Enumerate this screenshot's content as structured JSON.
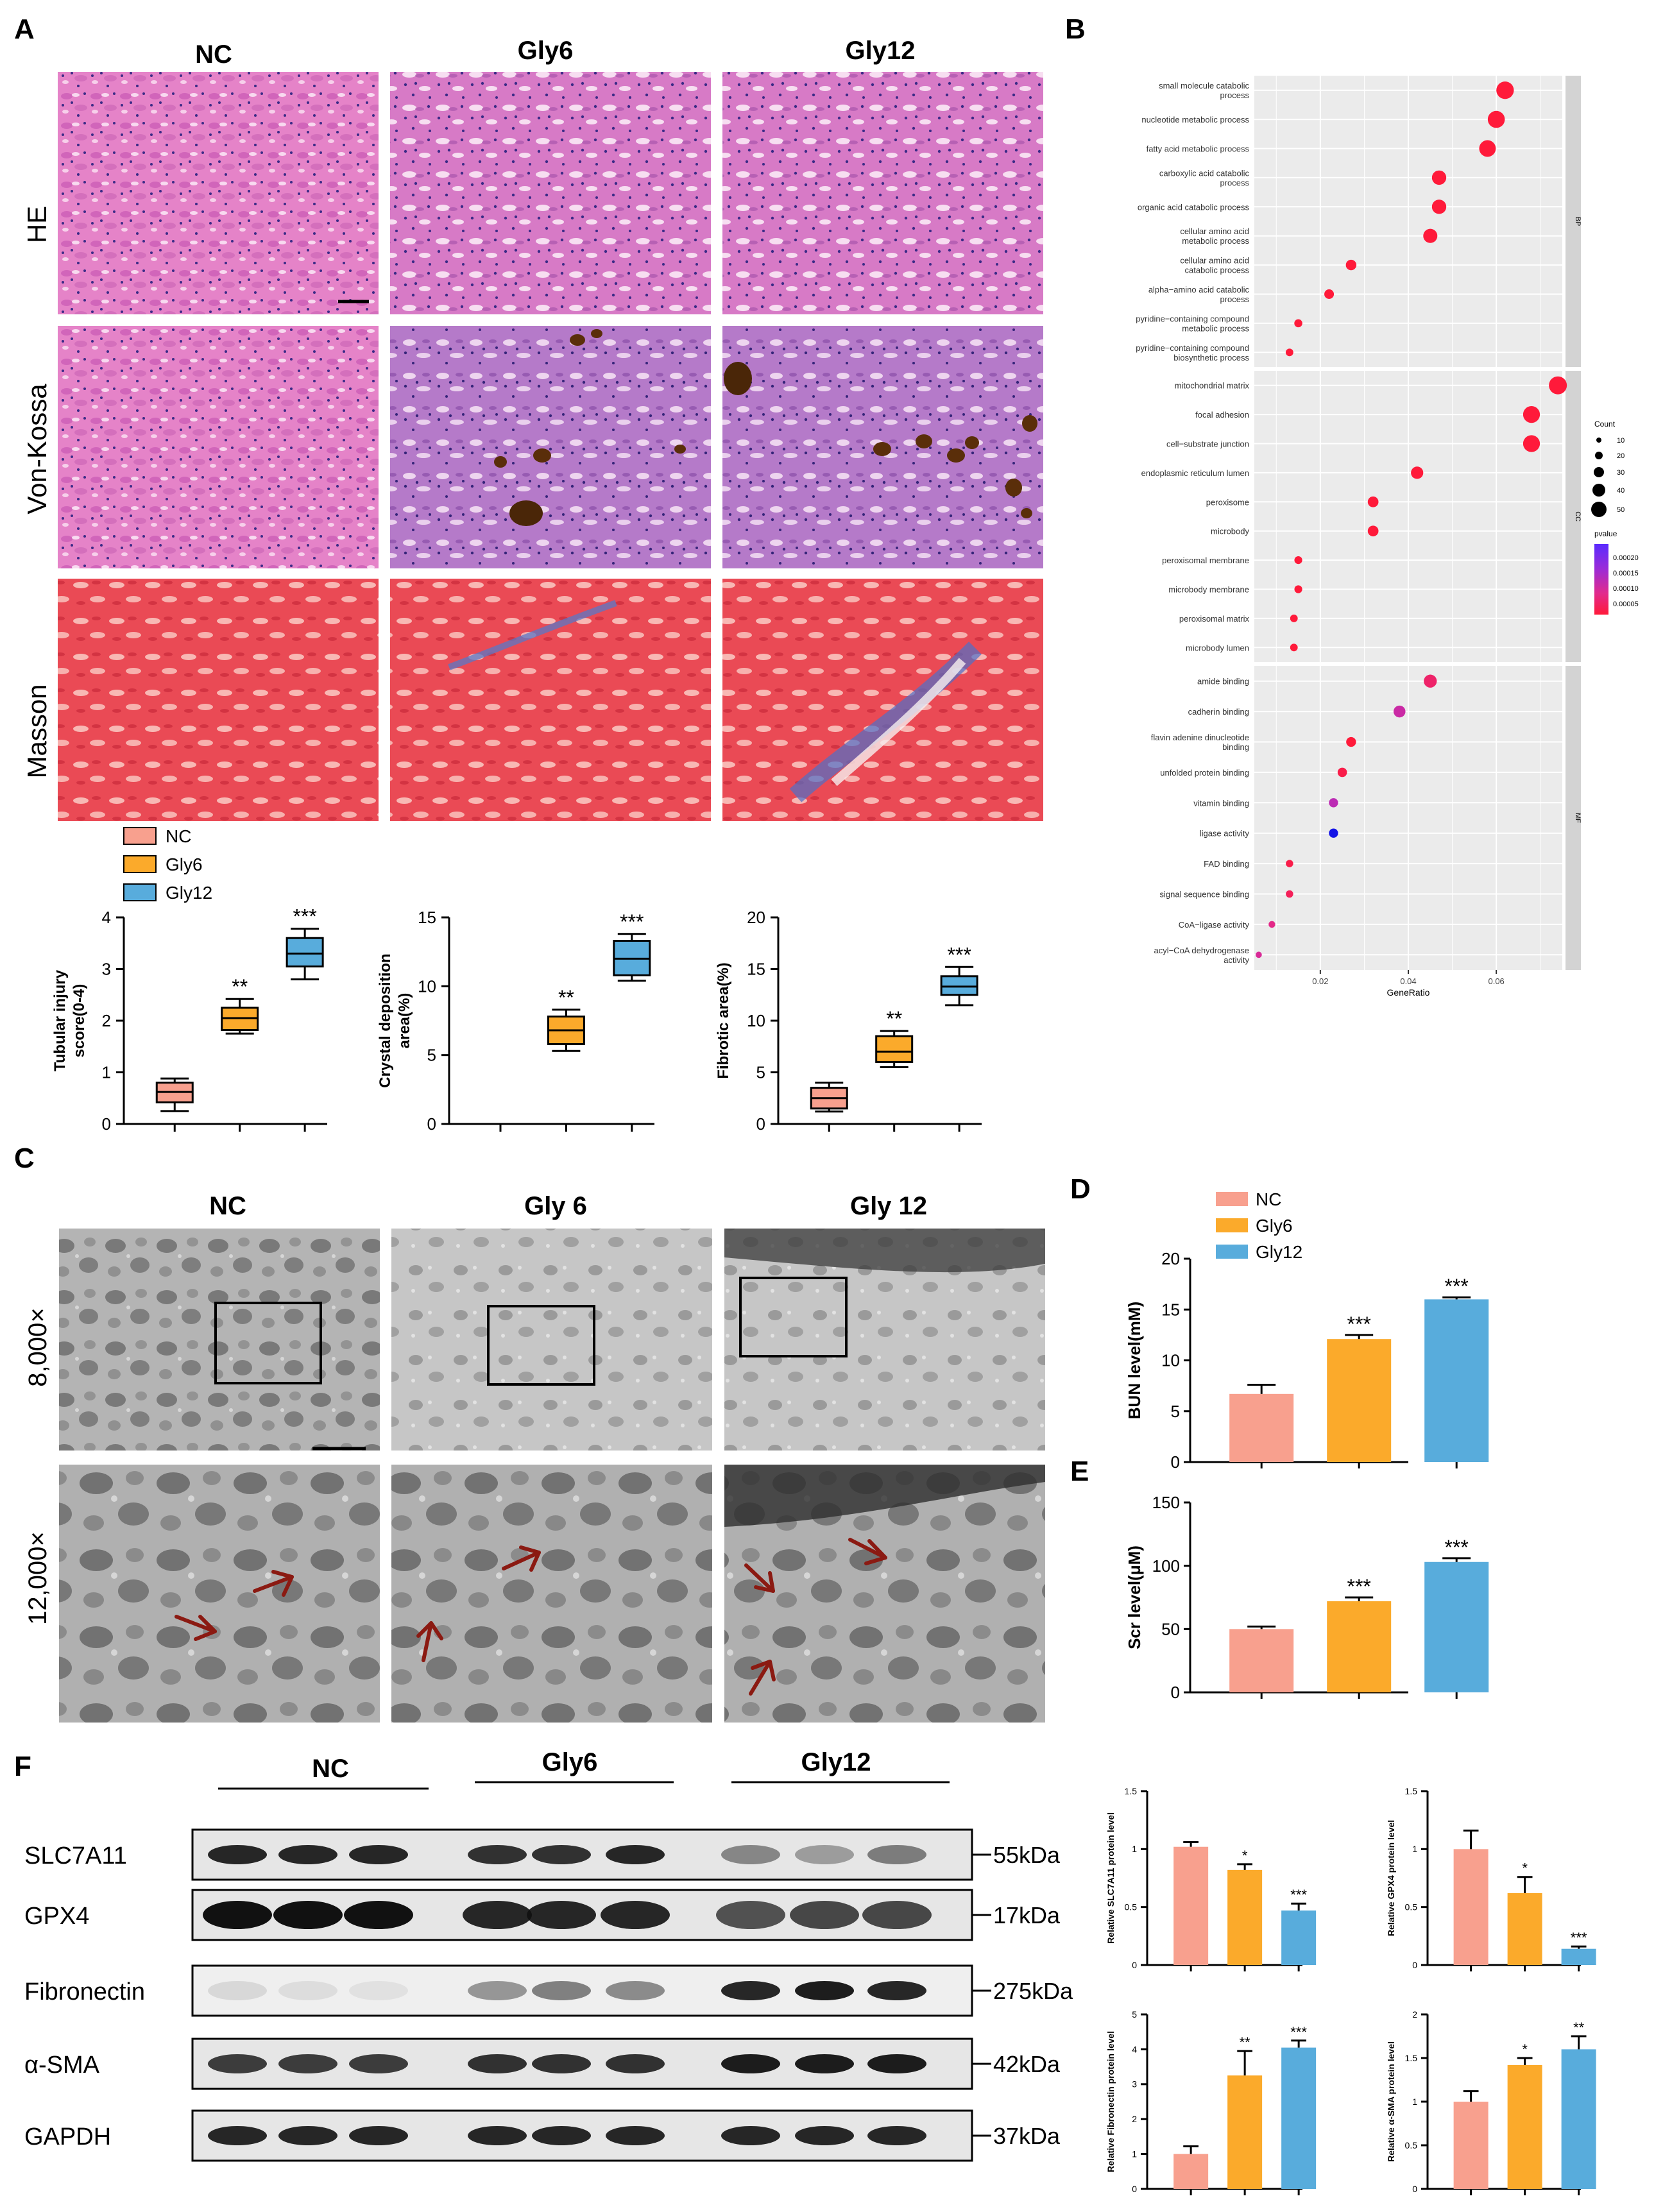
{
  "colors": {
    "nc": "#f8a08e",
    "gly6": "#fbaa2b",
    "gly12": "#58acdc",
    "ink": "#000000",
    "arrow": "#8b1a12",
    "grid_panel": "#ebebeb",
    "strip": "#d3d3d3"
  },
  "panel_A": {
    "label": "A",
    "columns": [
      "NC",
      "Gly6",
      "Gly12"
    ],
    "rows": [
      "HE",
      "Von-Kossa",
      "Masson"
    ],
    "legend": [
      "NC",
      "Gly6",
      "Gly12"
    ]
  },
  "panel_B": {
    "label": "B",
    "xlabel": "GeneRatio",
    "xticks": [
      "0.02",
      "0.04",
      "0.06"
    ],
    "count_title": "Count",
    "count_levels": [
      "10",
      "20",
      "30",
      "40",
      "50"
    ],
    "pvalue_title": "pvalue",
    "pvalue_levels": [
      "0.00020",
      "0.00015",
      "0.00010",
      "0.00005"
    ],
    "facets": [
      "BP",
      "CC",
      "MF"
    ]
  },
  "panel_C": {
    "label": "C",
    "columns": [
      "NC",
      "Gly 6",
      "Gly 12"
    ],
    "rows": [
      "8,000×",
      "12,000×"
    ]
  },
  "panel_D": {
    "label": "D",
    "legend": [
      "NC",
      "Gly6",
      "Gly12"
    ]
  },
  "panel_E": {
    "label": "E"
  },
  "panel_F": {
    "label": "F",
    "groups": [
      "NC",
      "Gly6",
      "Gly12"
    ],
    "proteins": [
      "SLC7A11",
      "GPX4",
      "Fibronectin",
      "α-SMA",
      "GAPDH"
    ],
    "sizes": [
      "55kDa",
      "17kDa",
      "275kDa",
      "42kDa",
      "37kDa"
    ]
  },
  "chart_data": [
    {
      "id": "go_enrichment",
      "type": "scatter",
      "title": "",
      "xlabel": "GeneRatio",
      "xlim": [
        0.005,
        0.075
      ],
      "facets": [
        {
          "name": "BP",
          "terms": [
            {
              "term": "small molecule catabolic process",
              "lines": [
                "small molecule catabolic",
                "process"
              ],
              "gene_ratio": 0.062,
              "count": 55,
              "pvalue": 1e-05
            },
            {
              "term": "nucleotide metabolic process",
              "lines": [
                "nucleotide metabolic process"
              ],
              "gene_ratio": 0.06,
              "count": 53,
              "pvalue": 1e-05
            },
            {
              "term": "fatty acid metabolic process",
              "lines": [
                "fatty acid metabolic process"
              ],
              "gene_ratio": 0.058,
              "count": 51,
              "pvalue": 1e-05
            },
            {
              "term": "carboxylic acid catabolic process",
              "lines": [
                "carboxylic acid catabolic",
                "process"
              ],
              "gene_ratio": 0.047,
              "count": 41,
              "pvalue": 1e-05
            },
            {
              "term": "organic acid catabolic process",
              "lines": [
                "organic acid catabolic process"
              ],
              "gene_ratio": 0.047,
              "count": 41,
              "pvalue": 1e-05
            },
            {
              "term": "cellular amino acid metabolic process",
              "lines": [
                "cellular amino acid",
                "metabolic process"
              ],
              "gene_ratio": 0.045,
              "count": 40,
              "pvalue": 1e-05
            },
            {
              "term": "cellular amino acid catabolic process",
              "lines": [
                "cellular amino acid",
                "catabolic process"
              ],
              "gene_ratio": 0.027,
              "count": 24,
              "pvalue": 1e-05
            },
            {
              "term": "alpha-amino acid catabolic process",
              "lines": [
                "alpha−amino acid catabolic",
                "process"
              ],
              "gene_ratio": 0.022,
              "count": 20,
              "pvalue": 1e-05
            },
            {
              "term": "pyridine-containing compound metabolic process",
              "lines": [
                "pyridine−containing compound",
                "metabolic process"
              ],
              "gene_ratio": 0.015,
              "count": 13,
              "pvalue": 1e-05
            },
            {
              "term": "pyridine-containing compound biosynthetic process",
              "lines": [
                "pyridine−containing compound",
                "biosynthetic process"
              ],
              "gene_ratio": 0.013,
              "count": 11,
              "pvalue": 1e-05
            }
          ]
        },
        {
          "name": "CC",
          "terms": [
            {
              "term": "mitochondrial matrix",
              "lines": [
                "mitochondrial matrix"
              ],
              "gene_ratio": 0.074,
              "count": 57,
              "pvalue": 1e-05
            },
            {
              "term": "focal adhesion",
              "lines": [
                "focal adhesion"
              ],
              "gene_ratio": 0.068,
              "count": 52,
              "pvalue": 1e-05
            },
            {
              "term": "cell-substrate junction",
              "lines": [
                "cell−substrate junction"
              ],
              "gene_ratio": 0.068,
              "count": 52,
              "pvalue": 1e-05
            },
            {
              "term": "endoplasmic reticulum lumen",
              "lines": [
                "endoplasmic reticulum lumen"
              ],
              "gene_ratio": 0.042,
              "count": 32,
              "pvalue": 1e-05
            },
            {
              "term": "peroxisome",
              "lines": [
                "peroxisome"
              ],
              "gene_ratio": 0.032,
              "count": 25,
              "pvalue": 1e-05
            },
            {
              "term": "microbody",
              "lines": [
                "microbody"
              ],
              "gene_ratio": 0.032,
              "count": 25,
              "pvalue": 1e-05
            },
            {
              "term": "peroxisomal membrane",
              "lines": [
                "peroxisomal membrane"
              ],
              "gene_ratio": 0.015,
              "count": 12,
              "pvalue": 1e-05
            },
            {
              "term": "microbody membrane",
              "lines": [
                "microbody membrane"
              ],
              "gene_ratio": 0.015,
              "count": 12,
              "pvalue": 1e-05
            },
            {
              "term": "peroxisomal matrix",
              "lines": [
                "peroxisomal matrix"
              ],
              "gene_ratio": 0.014,
              "count": 11,
              "pvalue": 1e-05
            },
            {
              "term": "microbody lumen",
              "lines": [
                "microbody lumen"
              ],
              "gene_ratio": 0.014,
              "count": 11,
              "pvalue": 1e-05
            }
          ]
        },
        {
          "name": "MF",
          "terms": [
            {
              "term": "amide binding",
              "lines": [
                "amide binding"
              ],
              "gene_ratio": 0.045,
              "count": 35,
              "pvalue": 4e-05
            },
            {
              "term": "cadherin binding",
              "lines": [
                "cadherin binding"
              ],
              "gene_ratio": 0.038,
              "count": 30,
              "pvalue": 8e-05
            },
            {
              "term": "flavin adenine dinucleotide binding",
              "lines": [
                "flavin adenine dinucleotide",
                "binding"
              ],
              "gene_ratio": 0.027,
              "count": 21,
              "pvalue": 1e-05
            },
            {
              "term": "unfolded protein binding",
              "lines": [
                "unfolded protein binding"
              ],
              "gene_ratio": 0.025,
              "count": 19,
              "pvalue": 2e-05
            },
            {
              "term": "vitamin binding",
              "lines": [
                "vitamin binding"
              ],
              "gene_ratio": 0.023,
              "count": 18,
              "pvalue": 9e-05
            },
            {
              "term": "ligase activity",
              "lines": [
                "ligase activity"
              ],
              "gene_ratio": 0.023,
              "count": 18,
              "pvalue": 0.00022
            },
            {
              "term": "FAD binding",
              "lines": [
                "FAD binding"
              ],
              "gene_ratio": 0.013,
              "count": 10,
              "pvalue": 2e-05
            },
            {
              "term": "signal sequence binding",
              "lines": [
                "signal sequence binding"
              ],
              "gene_ratio": 0.013,
              "count": 10,
              "pvalue": 3e-05
            },
            {
              "term": "CoA-ligase activity",
              "lines": [
                "CoA−ligase activity"
              ],
              "gene_ratio": 0.009,
              "count": 7,
              "pvalue": 6e-05
            },
            {
              "term": "acyl-CoA dehydrogenase activity",
              "lines": [
                "acyl−CoA dehydrogenase",
                "activity"
              ],
              "gene_ratio": 0.006,
              "count": 5,
              "pvalue": 7e-05
            }
          ]
        }
      ]
    },
    {
      "id": "tubular_injury",
      "type": "box",
      "ylabel_lines": [
        "Tubular injury",
        "score(0-4)"
      ],
      "ylim": [
        0,
        4
      ],
      "yticks": [
        0,
        1,
        2,
        3,
        4
      ],
      "groups": [
        {
          "name": "NC",
          "whisker_min": 0.25,
          "q1": 0.42,
          "median": 0.62,
          "q3": 0.8,
          "whisker_max": 0.88,
          "sig": ""
        },
        {
          "name": "Gly6",
          "whisker_min": 1.75,
          "q1": 1.82,
          "median": 2.05,
          "q3": 2.25,
          "whisker_max": 2.42,
          "sig": "**"
        },
        {
          "name": "Gly12",
          "whisker_min": 2.8,
          "q1": 3.05,
          "median": 3.3,
          "q3": 3.6,
          "whisker_max": 3.78,
          "sig": "***"
        }
      ]
    },
    {
      "id": "crystal_deposition",
      "type": "box",
      "ylabel_lines": [
        "Crystal deposition",
        "area(%)"
      ],
      "ylim": [
        0,
        15
      ],
      "yticks": [
        0,
        5,
        10,
        15
      ],
      "groups": [
        {
          "name": "NC",
          "whisker_min": 0,
          "q1": 0,
          "median": 0,
          "q3": 0,
          "whisker_max": 0,
          "sig": ""
        },
        {
          "name": "Gly6",
          "whisker_min": 5.3,
          "q1": 5.8,
          "median": 6.8,
          "q3": 7.8,
          "whisker_max": 8.3,
          "sig": "**"
        },
        {
          "name": "Gly12",
          "whisker_min": 10.4,
          "q1": 10.8,
          "median": 12.0,
          "q3": 13.3,
          "whisker_max": 13.8,
          "sig": "***"
        }
      ]
    },
    {
      "id": "fibrotic_area",
      "type": "box",
      "ylabel_lines": [
        "Fibrotic area(%)"
      ],
      "ylim": [
        0,
        20
      ],
      "yticks": [
        0,
        5,
        10,
        15,
        20
      ],
      "groups": [
        {
          "name": "NC",
          "whisker_min": 1.2,
          "q1": 1.5,
          "median": 2.5,
          "q3": 3.5,
          "whisker_max": 4.0,
          "sig": ""
        },
        {
          "name": "Gly6",
          "whisker_min": 5.5,
          "q1": 6.0,
          "median": 7.0,
          "q3": 8.5,
          "whisker_max": 9.0,
          "sig": "**"
        },
        {
          "name": "Gly12",
          "whisker_min": 11.5,
          "q1": 12.5,
          "median": 13.3,
          "q3": 14.3,
          "whisker_max": 15.2,
          "sig": "***"
        }
      ]
    },
    {
      "id": "bun",
      "type": "bar",
      "ylabel": "BUN level(mM)",
      "ylim": [
        0,
        20
      ],
      "yticks": [
        0,
        5,
        10,
        15,
        20
      ],
      "categories": [
        "NC",
        "Gly6",
        "Gly12"
      ],
      "values": [
        6.7,
        12.1,
        16.0
      ],
      "errors": [
        0.9,
        0.4,
        0.2
      ],
      "sig": [
        "",
        "***",
        "***"
      ]
    },
    {
      "id": "scr",
      "type": "bar",
      "ylabel": "Scr level(μM)",
      "ylim": [
        0,
        150
      ],
      "yticks": [
        0,
        50,
        100,
        150
      ],
      "categories": [
        "NC",
        "Gly6",
        "Gly12"
      ],
      "values": [
        50,
        72,
        103
      ],
      "errors": [
        2,
        3,
        3
      ],
      "sig": [
        "",
        "***",
        "***"
      ]
    },
    {
      "id": "slc7a11",
      "type": "bar",
      "ylabel": "Relative SLC7A11 protein level",
      "ylim": [
        0,
        1.5
      ],
      "yticks": [
        0,
        0.5,
        1.0,
        1.5
      ],
      "categories": [
        "NC",
        "Gly6",
        "Gly12"
      ],
      "values": [
        1.02,
        0.82,
        0.47
      ],
      "errors": [
        0.04,
        0.05,
        0.06
      ],
      "sig": [
        "",
        "*",
        "***"
      ]
    },
    {
      "id": "gpx4",
      "type": "bar",
      "ylabel": "Relative GPX4 protein level",
      "ylim": [
        0,
        1.5
      ],
      "yticks": [
        0,
        0.5,
        1.0,
        1.5
      ],
      "categories": [
        "NC",
        "Gly6",
        "Gly12"
      ],
      "values": [
        1.0,
        0.62,
        0.14
      ],
      "errors": [
        0.16,
        0.14,
        0.02
      ],
      "sig": [
        "",
        "*",
        "***"
      ]
    },
    {
      "id": "fibronectin",
      "type": "bar",
      "ylabel": "Relative Fibronectin protein level",
      "ylim": [
        0,
        5
      ],
      "yticks": [
        0,
        1,
        2,
        3,
        4,
        5
      ],
      "categories": [
        "NC",
        "Gly6",
        "Gly12"
      ],
      "values": [
        1.0,
        3.25,
        4.05
      ],
      "errors": [
        0.22,
        0.7,
        0.2
      ],
      "sig": [
        "",
        "**",
        "***"
      ]
    },
    {
      "id": "asma",
      "type": "bar",
      "ylabel": "Relative α-SMA protein level",
      "ylim": [
        0,
        2.0
      ],
      "yticks": [
        0,
        0.5,
        1.0,
        1.5,
        2.0
      ],
      "categories": [
        "NC",
        "Gly6",
        "Gly12"
      ],
      "values": [
        1.0,
        1.42,
        1.6
      ],
      "errors": [
        0.12,
        0.08,
        0.15
      ],
      "sig": [
        "",
        "*",
        "**"
      ]
    }
  ]
}
